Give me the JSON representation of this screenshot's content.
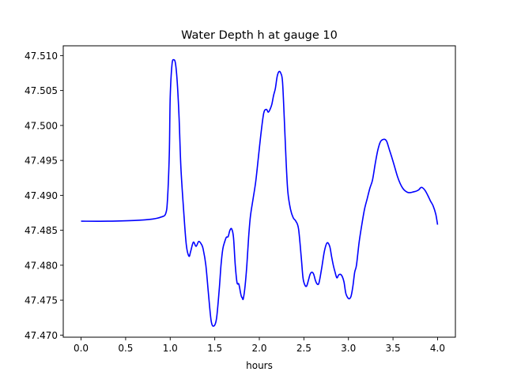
{
  "chart_data": {
    "type": "line",
    "title": "Water Depth h at gauge 10",
    "xlabel": "hours",
    "ylabel": "",
    "xlim": [
      -0.2,
      4.2
    ],
    "ylim": [
      47.4697,
      47.5114
    ],
    "xticks": [
      0.0,
      0.5,
      1.0,
      1.5,
      2.0,
      2.5,
      3.0,
      3.5,
      4.0
    ],
    "xtick_labels": [
      "0.0",
      "0.5",
      "1.0",
      "1.5",
      "2.0",
      "2.5",
      "3.0",
      "3.5",
      "4.0"
    ],
    "yticks": [
      47.47,
      47.475,
      47.48,
      47.485,
      47.49,
      47.495,
      47.5,
      47.505,
      47.51
    ],
    "ytick_labels": [
      "47.470",
      "47.475",
      "47.480",
      "47.485",
      "47.490",
      "47.495",
      "47.500",
      "47.505",
      "47.510"
    ],
    "grid": false,
    "legend": false,
    "line_color": "#0000ff",
    "series": [
      {
        "x": [
          0.0,
          0.3,
          0.6,
          0.8,
          0.9,
          0.95,
          0.97,
          0.99,
          1.0,
          1.02,
          1.04,
          1.06,
          1.08,
          1.1,
          1.12,
          1.15,
          1.18,
          1.21,
          1.23,
          1.26,
          1.29,
          1.32,
          1.35,
          1.37,
          1.4,
          1.43,
          1.46,
          1.49,
          1.52,
          1.55,
          1.57,
          1.59,
          1.61,
          1.63,
          1.65,
          1.67,
          1.69,
          1.71,
          1.73,
          1.75,
          1.77,
          1.79,
          1.8,
          1.81,
          1.82,
          1.84,
          1.86,
          1.88,
          1.9,
          1.93,
          1.96,
          1.99,
          2.02,
          2.05,
          2.08,
          2.1,
          2.12,
          2.14,
          2.16,
          2.18,
          2.2,
          2.22,
          2.24,
          2.26,
          2.28,
          2.3,
          2.32,
          2.35,
          2.38,
          2.41,
          2.44,
          2.47,
          2.49,
          2.51,
          2.53,
          2.55,
          2.57,
          2.59,
          2.61,
          2.63,
          2.65,
          2.67,
          2.7,
          2.73,
          2.76,
          2.79,
          2.81,
          2.83,
          2.85,
          2.87,
          2.89,
          2.91,
          2.93,
          2.95,
          2.97,
          2.99,
          3.01,
          3.03,
          3.05,
          3.07,
          3.09,
          3.12,
          3.15,
          3.18,
          3.21,
          3.24,
          3.27,
          3.3,
          3.33,
          3.36,
          3.39,
          3.41,
          3.43,
          3.46,
          3.49,
          3.52,
          3.55,
          3.58,
          3.61,
          3.64,
          3.67,
          3.7,
          3.73,
          3.76,
          3.79,
          3.81,
          3.83,
          3.86,
          3.89,
          3.92,
          3.95,
          3.98,
          4.0
        ],
        "y": [
          47.4863,
          47.4863,
          47.4864,
          47.4866,
          47.4869,
          47.4874,
          47.4895,
          47.496,
          47.504,
          47.5087,
          47.5094,
          47.5088,
          47.506,
          47.501,
          47.494,
          47.488,
          47.483,
          47.4813,
          47.482,
          47.4833,
          47.4827,
          47.4834,
          47.483,
          47.4823,
          47.48,
          47.4758,
          47.472,
          47.4713,
          47.4724,
          47.4765,
          47.48,
          47.4823,
          47.4833,
          47.484,
          47.4841,
          47.485,
          47.4852,
          47.484,
          47.48,
          47.4775,
          47.4773,
          47.476,
          47.4755,
          47.4753,
          47.4752,
          47.477,
          47.48,
          47.484,
          47.487,
          47.4895,
          47.492,
          47.4955,
          47.499,
          47.5018,
          47.5023,
          47.5019,
          47.5023,
          47.503,
          47.5043,
          47.5053,
          47.507,
          47.5077,
          47.5075,
          47.5063,
          47.501,
          47.495,
          47.4905,
          47.488,
          47.4868,
          47.4863,
          47.4852,
          47.4812,
          47.4782,
          47.4772,
          47.477,
          47.4778,
          47.4787,
          47.479,
          47.4787,
          47.4778,
          47.4773,
          47.4775,
          47.4796,
          47.482,
          47.4832,
          47.4827,
          47.4813,
          47.48,
          47.479,
          47.4782,
          47.4786,
          47.4787,
          47.4784,
          47.4776,
          47.476,
          47.4754,
          47.4752,
          47.4756,
          47.477,
          47.479,
          47.48,
          47.4833,
          47.4858,
          47.488,
          47.4895,
          47.491,
          47.4922,
          47.4945,
          47.4965,
          47.4977,
          47.498,
          47.498,
          47.4977,
          47.4965,
          47.4953,
          47.494,
          47.4927,
          47.4917,
          47.491,
          47.4906,
          47.4904,
          47.4904,
          47.4905,
          47.4906,
          47.4908,
          47.4911,
          47.4911,
          47.4907,
          47.49,
          47.4892,
          47.4885,
          47.4873,
          47.4858
        ]
      }
    ]
  }
}
